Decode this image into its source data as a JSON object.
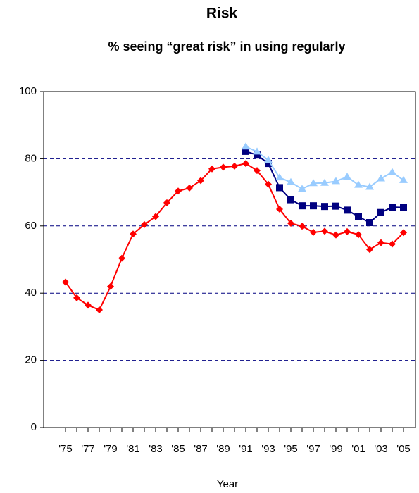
{
  "chart_data": {
    "type": "line",
    "title": "Risk",
    "subtitle": "% seeing “great risk” in using regularly",
    "x_label": "Year",
    "categories": [
      "'75",
      null,
      "'77",
      null,
      "'79",
      null,
      "'81",
      null,
      "'83",
      null,
      "'85",
      null,
      "'87",
      null,
      "'89",
      null,
      "'91",
      null,
      "'93",
      null,
      "'95",
      null,
      "'97",
      null,
      "'99",
      null,
      "'01",
      null,
      "'03",
      null,
      "'05"
    ],
    "series": [
      {
        "color": "#ff0000",
        "marker": "diamond",
        "values": [
          43.3,
          38.6,
          36.4,
          35.0,
          42.0,
          50.4,
          57.6,
          60.4,
          62.8,
          66.9,
          70.4,
          71.3,
          73.5,
          77.0,
          77.5,
          77.8,
          78.6,
          76.5,
          72.4,
          65.0,
          60.8,
          59.9,
          58.1,
          58.4,
          57.3,
          58.3,
          57.4,
          53.0,
          55.0,
          54.6,
          58.0
        ]
      },
      {
        "color": "#000080",
        "marker": "square",
        "values": [
          null,
          null,
          null,
          null,
          null,
          null,
          null,
          null,
          null,
          null,
          null,
          null,
          null,
          null,
          null,
          null,
          82.2,
          81.1,
          78.6,
          71.4,
          67.8,
          66.0,
          66.0,
          65.8,
          65.9,
          64.7,
          62.8,
          61.0,
          64.0,
          65.6,
          65.5
        ]
      },
      {
        "color": "#99ccff",
        "marker": "triangle",
        "values": [
          null,
          null,
          null,
          null,
          null,
          null,
          null,
          null,
          null,
          null,
          null,
          null,
          null,
          null,
          null,
          null,
          83.6,
          82.1,
          79.6,
          74.4,
          73.0,
          71.0,
          72.7,
          72.8,
          73.3,
          74.6,
          72.2,
          71.6,
          74.1,
          76.0,
          73.6
        ]
      }
    ],
    "ylim": [
      0,
      100
    ],
    "yticks": [
      0,
      20,
      40,
      60,
      80,
      100
    ],
    "grid": true
  }
}
